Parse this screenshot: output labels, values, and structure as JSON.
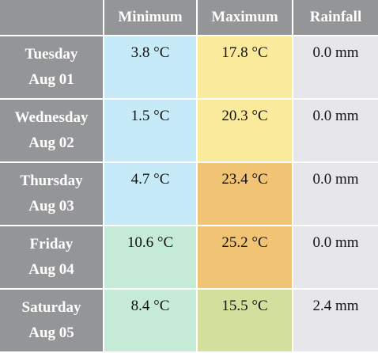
{
  "headers": {
    "minimum": "Minimum",
    "maximum": "Maximum",
    "rainfall": "Rainfall"
  },
  "rows": [
    {
      "weekday": "Tuesday",
      "date": "Aug 01",
      "minimum": "3.8 °C",
      "maximum": "17.8 °C",
      "rainfall": "0.0 mm"
    },
    {
      "weekday": "Wednesday",
      "date": "Aug 02",
      "minimum": "1.5 °C",
      "maximum": "20.3 °C",
      "rainfall": "0.0 mm"
    },
    {
      "weekday": "Thursday",
      "date": "Aug 03",
      "minimum": "4.7 °C",
      "maximum": "23.4 °C",
      "rainfall": "0.0 mm"
    },
    {
      "weekday": "Friday",
      "date": "Aug 04",
      "minimum": "10.6 °C",
      "maximum": "25.2 °C",
      "rainfall": "0.0 mm"
    },
    {
      "weekday": "Saturday",
      "date": "Aug 05",
      "minimum": "8.4 °C",
      "maximum": "15.5 °C",
      "rainfall": "2.4 mm"
    }
  ],
  "colors": {
    "header_bg": "#949597",
    "min_cool": "#c6eaf8",
    "min_mild": "#c5ead8",
    "max_warm": "#f9ea9c",
    "max_hot": "#f1c375",
    "max_mild": "#d3df9d",
    "rain_bg": "#e7e6ea"
  }
}
